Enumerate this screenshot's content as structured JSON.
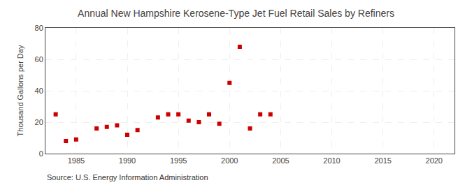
{
  "chart_data": {
    "type": "scatter",
    "title": "Annual New Hampshire Kerosene-Type Jet Fuel Retail Sales by Refiners",
    "ylabel": "Thousand Gallons per Day",
    "annotations": [
      "Source: U.S. Energy Information Administration"
    ],
    "x": [
      1983,
      1984,
      1985,
      1987,
      1988,
      1989,
      1990,
      1991,
      1993,
      1994,
      1995,
      1996,
      1997,
      1998,
      1999,
      2000,
      2001,
      2002,
      2003,
      2004
    ],
    "values": [
      25,
      8,
      9,
      16,
      17,
      18,
      12,
      15,
      23,
      25,
      25,
      21,
      20,
      25,
      19,
      45,
      68,
      16,
      25,
      25
    ],
    "color": "#cc0000",
    "marker": "square",
    "xlim": [
      1982,
      2022
    ],
    "ylim": [
      0,
      80
    ],
    "xticks": [
      1985,
      1990,
      1995,
      2000,
      2005,
      2010,
      2015,
      2020
    ],
    "yticks": [
      0,
      20,
      40,
      60,
      80
    ],
    "grid": true
  }
}
